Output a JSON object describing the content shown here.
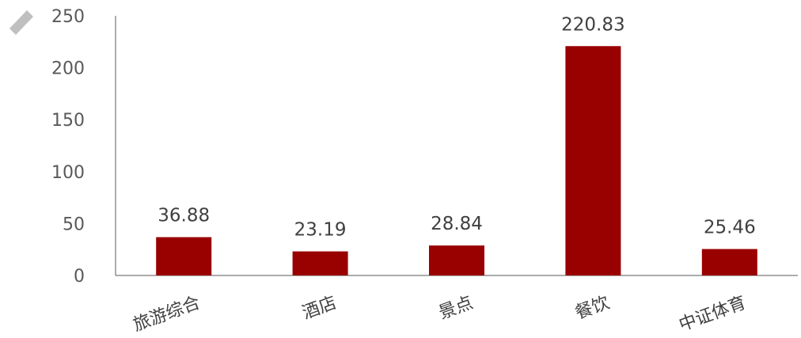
{
  "chart_data": {
    "type": "bar",
    "categories": [
      "旅游综合",
      "酒店",
      "景点",
      "餐饮",
      "中证体育"
    ],
    "values": [
      36.88,
      23.19,
      28.84,
      220.83,
      25.46
    ],
    "value_labels": [
      "36.88",
      "23.19",
      "28.84",
      "220.83",
      "25.46"
    ],
    "ylim": [
      0,
      250
    ],
    "yticks": [
      0,
      50,
      100,
      150,
      200,
      250
    ],
    "title": "",
    "xlabel": "",
    "ylabel": "",
    "grid": false,
    "legend": "none",
    "bar_color": "#990000",
    "axis_color": "#595959",
    "corner_mark_color": "#BFBFBF"
  }
}
